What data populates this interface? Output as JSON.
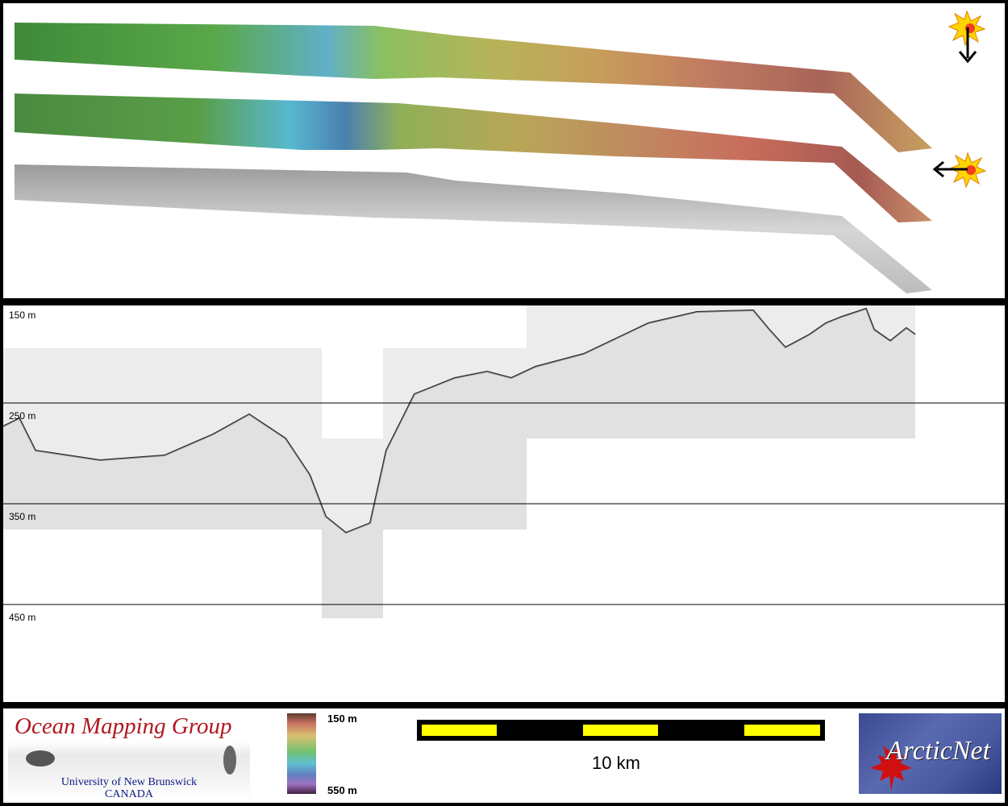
{
  "map": {
    "strips": [
      {
        "name": "shaded-bathymetry-sun-north",
        "type": "color"
      },
      {
        "name": "shaded-bathymetry-sun-east",
        "type": "color"
      },
      {
        "name": "backscatter-mosaic",
        "type": "grayscale"
      }
    ],
    "icons": [
      "sun-icon",
      "arrow-down-icon",
      "arrow-left-icon"
    ]
  },
  "profile": {
    "depth_labels": [
      "150 m",
      "250 m",
      "350 m",
      "450 m"
    ]
  },
  "footer": {
    "omg_logo": {
      "title": "Ocean Mapping Group",
      "line1": "University of New Brunswick",
      "line2": "CANADA"
    },
    "colorbar": {
      "top_label": "150 m",
      "bottom_label": "550 m"
    },
    "scale": {
      "label": "10 km",
      "segments": 5
    },
    "arctic_logo": {
      "text": "ArcticNet"
    }
  }
}
